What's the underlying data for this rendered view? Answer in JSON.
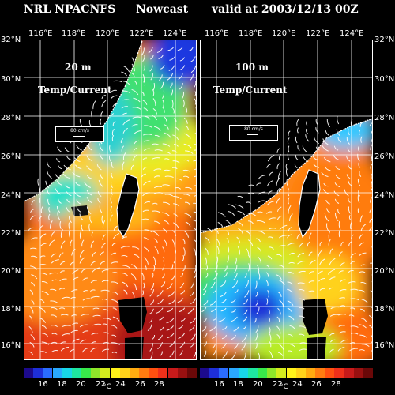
{
  "header": {
    "model": "NRL NPACNFS",
    "type": "Nowcast",
    "valid": "valid at 2003/12/13 00Z"
  },
  "lon_labels": [
    "116°E",
    "118°E",
    "120°E",
    "122°E",
    "124°E"
  ],
  "lat_labels": [
    "32°N",
    "30°N",
    "28°N",
    "26°N",
    "24°N",
    "22°N",
    "20°N",
    "18°N",
    "16°N"
  ],
  "panels": [
    {
      "depth": "20 m",
      "field": "Temp/Current",
      "ref_speed": "80 cm/s"
    },
    {
      "depth": "100 m",
      "field": "Temp/Current",
      "ref_speed": "80 cm/s"
    }
  ],
  "colorbar": {
    "ticks": [
      "16",
      "18",
      "20",
      "22",
      "24",
      "26",
      "28"
    ],
    "unit": "°C",
    "colors": [
      "#1c0a8c",
      "#1e2fd8",
      "#2a6cff",
      "#2aa8ff",
      "#18d6e8",
      "#1ee6a0",
      "#38e84a",
      "#8ee62a",
      "#d4ec1e",
      "#fff21a",
      "#ffd21a",
      "#ffaa10",
      "#ff7c10",
      "#ff5010",
      "#f0301a",
      "#c81a1a",
      "#9a1010",
      "#6a0808"
    ]
  },
  "colors": {
    "land": "#000000",
    "grid": "#ffffff",
    "coast": "#ffffff"
  }
}
